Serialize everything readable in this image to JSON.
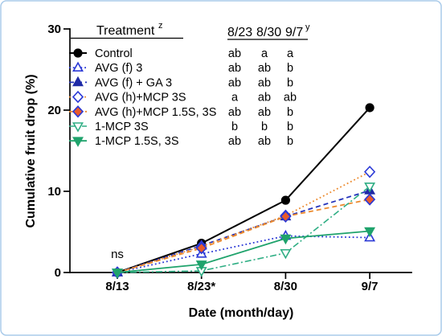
{
  "chart_data": {
    "type": "line",
    "xlabel": "Date (month/day)",
    "ylabel": "Cumulative fruit drop (%)",
    "categories": [
      "8/13",
      "8/23*",
      "8/30",
      "9/7"
    ],
    "ylim": [
      0,
      30
    ],
    "yticks": [
      0,
      10,
      20,
      30
    ],
    "grid": false,
    "legend": {
      "placement": "top-left",
      "title": "Treatment",
      "title_sup": "z",
      "columns": [
        "8/23",
        "8/30",
        "9/7"
      ],
      "columns_sup": "y"
    },
    "annotations": [
      {
        "text": "ns",
        "category_index": 0
      }
    ],
    "series": [
      {
        "name": "Control",
        "values": [
          0,
          3.6,
          8.9,
          20.3
        ],
        "letters": [
          "ab",
          "a",
          "a"
        ],
        "line_color": "#000000",
        "marker_stroke": "#000000",
        "marker_fill": "#000000"
      },
      {
        "name": "AVG (f) 3",
        "values": [
          0,
          2.3,
          4.5,
          4.3
        ],
        "letters": [
          "ab",
          "ab",
          "b"
        ],
        "line_color": "#2b39d6",
        "marker_stroke": "#2b39d6",
        "marker_fill": "#ffffff"
      },
      {
        "name": "AVG (f) + GA 3",
        "values": [
          0,
          3.3,
          6.9,
          10.1
        ],
        "letters": [
          "ab",
          "ab",
          "b"
        ],
        "line_color": "#2433bb",
        "marker_stroke": "#1f2aa6",
        "marker_fill": "#1f2aa6"
      },
      {
        "name": "AVG (h)+MCP 3S",
        "values": [
          0,
          3.2,
          7.0,
          12.4
        ],
        "letters": [
          "a",
          "ab",
          "ab"
        ],
        "line_color": "#ec8a2e",
        "marker_stroke": "#2b39d6",
        "marker_fill": "#ffffff"
      },
      {
        "name": "AVG (h)+MCP 1.5S, 3S",
        "values": [
          0,
          3.0,
          6.9,
          9.0
        ],
        "letters": [
          "ab",
          "ab",
          "b"
        ],
        "line_color": "#ec8a2e",
        "marker_stroke": "#2b39d6",
        "marker_fill": "#e95b2b"
      },
      {
        "name": "1-MCP 3S",
        "values": [
          0,
          0.2,
          2.4,
          10.6
        ],
        "letters": [
          "b",
          "b",
          "b"
        ],
        "line_color": "#2fae84",
        "marker_stroke": "#2fae84",
        "marker_fill": "#ffffff"
      },
      {
        "name": "1-MCP 1.5S, 3S",
        "values": [
          0,
          1.0,
          4.2,
          5.1
        ],
        "letters": [
          "ab",
          "ab",
          "b"
        ],
        "line_color": "#1fa36c",
        "marker_stroke": "#1fa36c",
        "marker_fill": "#1fa36c"
      }
    ]
  }
}
